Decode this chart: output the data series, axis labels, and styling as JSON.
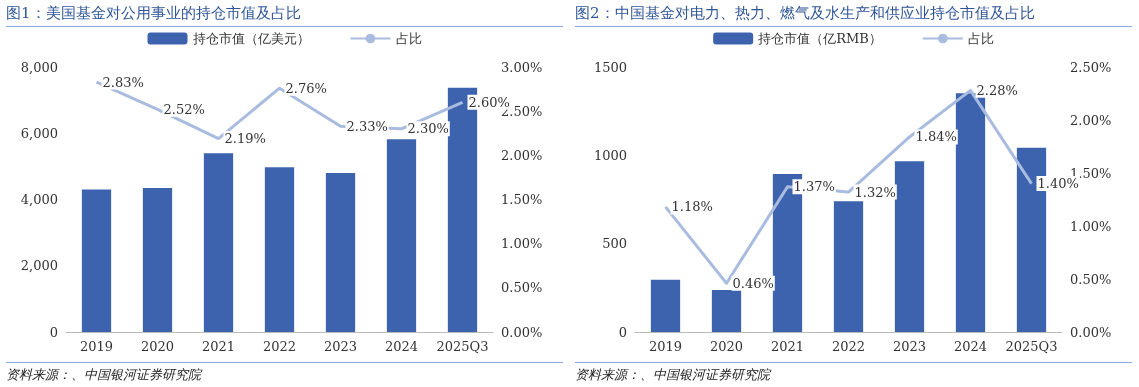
{
  "chart_data": [
    {
      "type": "bar",
      "title": "图1：美国基金对公用事业的持仓市值及占比",
      "categories": [
        "2019",
        "2020",
        "2021",
        "2022",
        "2023",
        "2024",
        "2025Q3"
      ],
      "series": [
        {
          "name": "持仓市值（亿美元）",
          "color": "#3d63ae",
          "values": [
            4300,
            4350,
            5400,
            4970,
            4800,
            5820,
            7370
          ]
        },
        {
          "name": "占比",
          "type": "line",
          "axis": "y2",
          "color": "#a9bcdf",
          "values": [
            2.83,
            2.52,
            2.19,
            2.76,
            2.33,
            2.3,
            2.6
          ],
          "value_labels": [
            "2.83%",
            "2.52%",
            "2.19%",
            "2.76%",
            "2.33%",
            "2.30%",
            "2.60%"
          ]
        }
      ],
      "ylim": [
        0,
        8000
      ],
      "yticks": [
        {
          "value": 0,
          "label": "0"
        },
        {
          "value": 2000,
          "label": "2,000"
        },
        {
          "value": 4000,
          "label": "4,000"
        },
        {
          "value": 6000,
          "label": "6,000"
        },
        {
          "value": 8000,
          "label": "8,000"
        }
      ],
      "y2lim": [
        0,
        3
      ],
      "y2ticks": [
        {
          "value": 0,
          "label": "0.00%"
        },
        {
          "value": 0.5,
          "label": "0.50%"
        },
        {
          "value": 1,
          "label": "1.00%"
        },
        {
          "value": 1.5,
          "label": "1.50%"
        },
        {
          "value": 2,
          "label": "2.00%"
        },
        {
          "value": 2.5,
          "label": "2.50%"
        },
        {
          "value": 3,
          "label": "3.00%"
        }
      ],
      "legend": "top",
      "grid": false,
      "marker": "none",
      "annotations": [
        "资料来源：、中国银河证券研究院"
      ]
    },
    {
      "type": "bar",
      "title": "图2：中国基金对电力、热力、燃气及水生产和供应业持仓市值及占比",
      "categories": [
        "2019",
        "2020",
        "2021",
        "2022",
        "2023",
        "2024",
        "2025Q3"
      ],
      "series": [
        {
          "name": "持仓市值（亿RMB）",
          "color": "#3d63ae",
          "values": [
            296,
            238,
            895,
            740,
            966,
            1352,
            1043
          ]
        },
        {
          "name": "占比",
          "type": "line",
          "axis": "y2",
          "color": "#a9bcdf",
          "values": [
            1.18,
            0.46,
            1.37,
            1.32,
            1.84,
            2.28,
            1.4
          ],
          "value_labels": [
            "1.18%",
            "0.46%",
            "1.37%",
            "1.32%",
            "1.84%",
            "2.28%",
            "1.40%"
          ]
        }
      ],
      "ylim": [
        0,
        1500
      ],
      "yticks": [
        0,
        500,
        1000,
        1500
      ],
      "y2lim": [
        0,
        2.5
      ],
      "y2ticks": [
        {
          "value": 0,
          "label": "0.00%"
        },
        {
          "value": 0.5,
          "label": "0.50%"
        },
        {
          "value": 1,
          "label": "1.00%"
        },
        {
          "value": 1.5,
          "label": "1.50%"
        },
        {
          "value": 2,
          "label": "2.00%"
        },
        {
          "value": 2.5,
          "label": "2.50%"
        }
      ],
      "legend": "top",
      "grid": false,
      "marker": "none",
      "annotations": [
        "资料来源：、中国银河证券研究院"
      ]
    }
  ]
}
